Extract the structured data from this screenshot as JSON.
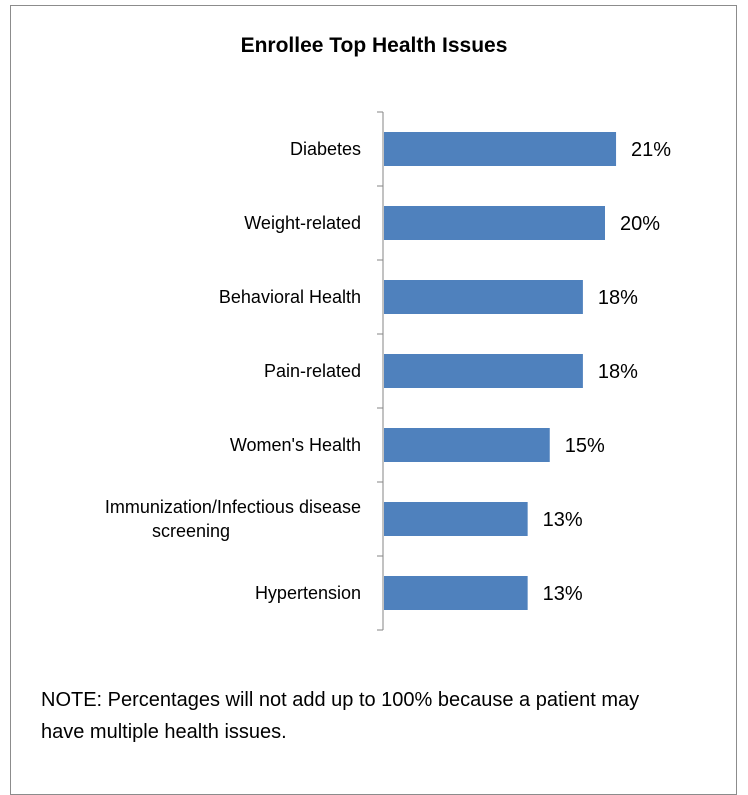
{
  "chart_data": {
    "type": "bar",
    "orientation": "horizontal",
    "title": "Enrollee Top Health Issues",
    "categories": [
      "Diabetes",
      "Weight-related",
      "Behavioral Health",
      "Pain-related",
      "Women's Health",
      [
        "Immunization/Infectious disease",
        "screening"
      ],
      "Hypertension"
    ],
    "values": [
      21,
      20,
      18,
      18,
      15,
      13,
      13
    ],
    "value_suffix": "%",
    "xlim": [
      0,
      25
    ],
    "grid": false,
    "legend": "none",
    "bar_color": "#4f81bd"
  },
  "note": "NOTE: Percentages will not add up to 100% because a patient may have multiple health issues."
}
